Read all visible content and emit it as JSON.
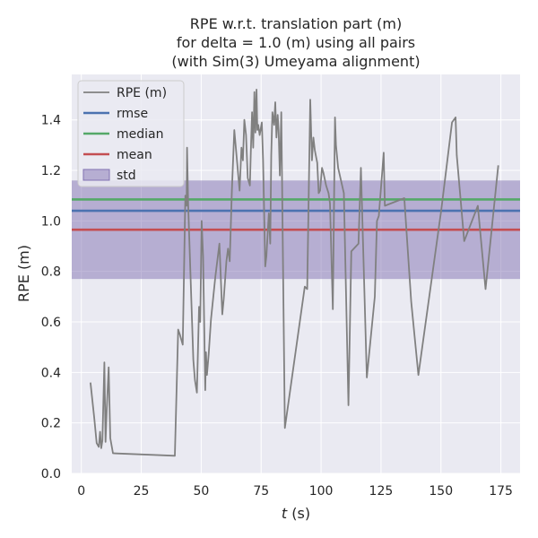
{
  "chart_data": {
    "type": "line",
    "title": [
      "RPE w.r.t. translation part (m)",
      "for delta = 1.0 (m) using all pairs",
      "(with Sim(3) Umeyama alignment)"
    ],
    "xlabel_italic": "t",
    "xlabel_rest": " (s)",
    "ylabel": "RPE (m)",
    "xlim": [
      -4,
      183
    ],
    "ylim": [
      0,
      1.58
    ],
    "xticks": [
      0,
      25,
      50,
      75,
      100,
      125,
      150,
      175
    ],
    "yticks": [
      0.0,
      0.2,
      0.4,
      0.6,
      0.8,
      1.0,
      1.2,
      1.4
    ],
    "ytick_labels": [
      "0.0",
      "0.2",
      "0.4",
      "0.6",
      "0.8",
      "1.0",
      "1.2",
      "1.4"
    ],
    "grid": true,
    "legend_position": "top-left",
    "colors": {
      "background": "#eaeaf2",
      "grid": "#ffffff",
      "rpe": "#808080",
      "rmse": "#4c72b0",
      "median": "#55a868",
      "mean": "#c44e52",
      "std": "#8172b2"
    },
    "stats": {
      "rmse": 1.04,
      "median": 1.085,
      "mean": 0.965,
      "std_low": 0.77,
      "std_high": 1.16
    },
    "legend": [
      {
        "label": "RPE (m)",
        "key": "rpe",
        "kind": "line"
      },
      {
        "label": "rmse",
        "key": "rmse",
        "kind": "line"
      },
      {
        "label": "median",
        "key": "median",
        "kind": "line"
      },
      {
        "label": "mean",
        "key": "mean",
        "kind": "line"
      },
      {
        "label": "std",
        "key": "std",
        "kind": "patch"
      }
    ],
    "series": [
      {
        "name": "RPE (m)",
        "x": [
          3.8,
          5.4,
          6.4,
          7.3,
          7.8,
          8.3,
          8.8,
          9.6,
          10.1,
          10.6,
          11.4,
          12.1,
          13.2,
          39.0,
          40.4,
          41.1,
          42.3,
          43.4,
          43.9,
          44.1,
          44.6,
          46.7,
          47.4,
          48.2,
          49.1,
          49.6,
          50.2,
          50.8,
          51.7,
          52.0,
          52.4,
          53.1,
          54.1,
          55.9,
          57.6,
          58.8,
          59.4,
          59.9,
          60.5,
          61.2,
          61.9,
          62.8,
          63.8,
          65.0,
          66.0,
          66.8,
          67.4,
          68.0,
          68.7,
          69.4,
          70.3,
          70.7,
          71.2,
          71.7,
          72.2,
          72.6,
          73.1,
          73.4,
          73.8,
          74.4,
          75.3,
          75.8,
          76.7,
          77.2,
          78.2,
          78.8,
          79.2,
          79.7,
          80.4,
          80.9,
          81.4,
          81.9,
          82.3,
          82.8,
          83.4,
          84.9,
          85.5,
          93.2,
          94.2,
          95.5,
          96.2,
          96.8,
          97.4,
          98.0,
          98.4,
          99.0,
          99.6,
          100.4,
          101.0,
          102.1,
          103.1,
          103.7,
          104.9,
          105.8,
          106.2,
          107.1,
          109.5,
          111.4,
          112.6,
          115.6,
          116.6,
          119.1,
          122.4,
          123.3,
          124.1,
          126.1,
          126.6,
          134.7,
          137.6,
          140.6,
          150.1,
          154.6,
          156.1,
          156.6,
          159.7,
          165.4,
          168.6,
          173.9
        ],
        "values": [
          0.36,
          0.22,
          0.12,
          0.105,
          0.165,
          0.1,
          0.13,
          0.44,
          0.125,
          0.25,
          0.42,
          0.14,
          0.08,
          0.07,
          0.57,
          0.55,
          0.51,
          1.1,
          1.06,
          1.29,
          1.06,
          0.45,
          0.37,
          0.32,
          0.66,
          0.6,
          1.0,
          0.86,
          0.33,
          0.48,
          0.39,
          0.47,
          0.61,
          0.78,
          0.91,
          0.63,
          0.69,
          0.76,
          0.84,
          0.89,
          0.84,
          1.12,
          1.36,
          1.23,
          1.12,
          1.29,
          1.24,
          1.4,
          1.34,
          1.17,
          1.14,
          1.27,
          1.43,
          1.29,
          1.51,
          1.35,
          1.52,
          1.36,
          1.38,
          1.34,
          1.39,
          1.24,
          0.82,
          0.86,
          1.03,
          0.91,
          1.26,
          1.43,
          1.38,
          1.47,
          1.33,
          1.42,
          1.36,
          1.18,
          1.43,
          0.18,
          0.22,
          0.74,
          0.73,
          1.48,
          1.24,
          1.33,
          1.28,
          1.25,
          1.23,
          1.11,
          1.12,
          1.21,
          1.19,
          1.14,
          1.11,
          1.07,
          0.65,
          1.41,
          1.3,
          1.21,
          1.11,
          0.27,
          0.88,
          0.91,
          1.21,
          0.38,
          0.7,
          1.0,
          1.02,
          1.27,
          1.06,
          1.09,
          0.68,
          0.39,
          1.04,
          1.39,
          1.41,
          1.26,
          0.92,
          1.06,
          0.73,
          1.22
        ]
      }
    ]
  }
}
